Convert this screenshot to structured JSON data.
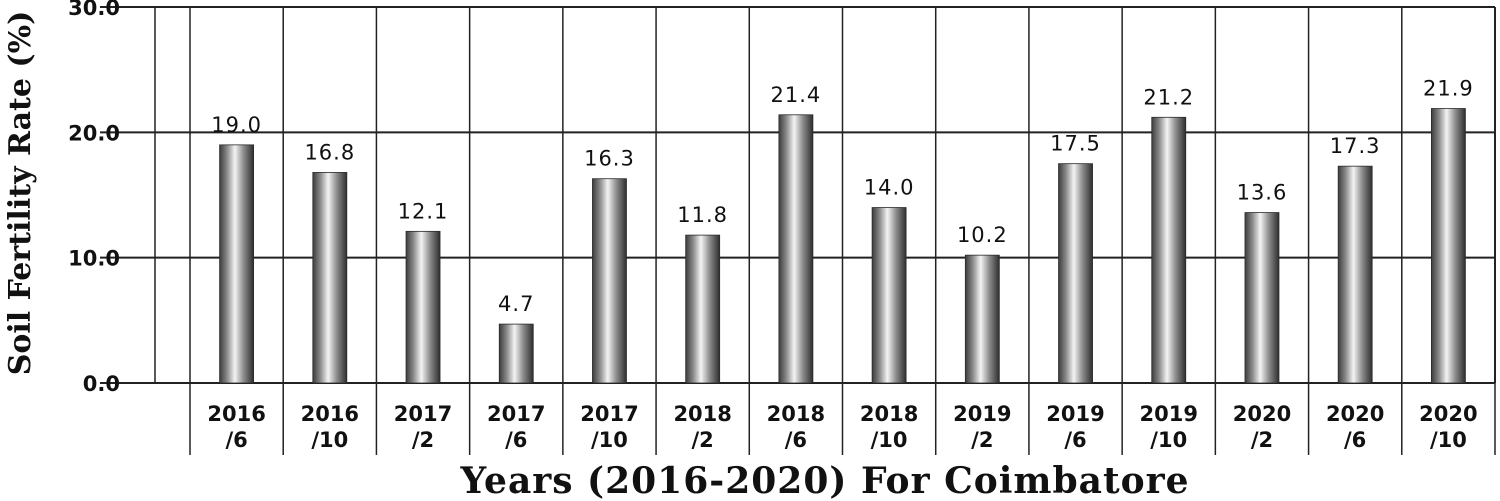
{
  "chart_data": {
    "type": "bar",
    "categories": [
      "2016/6",
      "2016/10",
      "2017/2",
      "2017/6",
      "2017/10",
      "2018/2",
      "2018/6",
      "2018/10",
      "2019/2",
      "2019/6",
      "2019/10",
      "2020/2",
      "2020/6",
      "2020/10"
    ],
    "category_lines": [
      [
        "2016",
        "/6"
      ],
      [
        "2016",
        "/10"
      ],
      [
        "2017",
        "/2"
      ],
      [
        "2017",
        "/6"
      ],
      [
        "2017",
        "/10"
      ],
      [
        "2018",
        "/2"
      ],
      [
        "2018",
        "/6"
      ],
      [
        "2018",
        "/10"
      ],
      [
        "2019",
        "/2"
      ],
      [
        "2019",
        "/6"
      ],
      [
        "2019",
        "/10"
      ],
      [
        "2020",
        "/2"
      ],
      [
        "2020",
        "/6"
      ],
      [
        "2020",
        "/10"
      ]
    ],
    "values": [
      19.0,
      16.8,
      12.1,
      4.7,
      16.3,
      11.8,
      21.4,
      14.0,
      10.2,
      17.5,
      21.2,
      13.6,
      17.3,
      21.9
    ],
    "value_labels": [
      "19.0",
      "16.8",
      "12.1",
      "4.7",
      "16.3",
      "11.8",
      "21.4",
      "14.0",
      "10.2",
      "17.5",
      "21.2",
      "13.6",
      "17.3",
      "21.9"
    ],
    "yticks": [
      "0.0",
      "10.0",
      "20.0",
      "30.0"
    ],
    "ylim": [
      0,
      30
    ],
    "xlabel": "Years (2016-2020) For Coimbatore",
    "ylabel": "Soil Fertility Rate (%)",
    "grid": true,
    "bar_color": "#9a9a9a"
  }
}
